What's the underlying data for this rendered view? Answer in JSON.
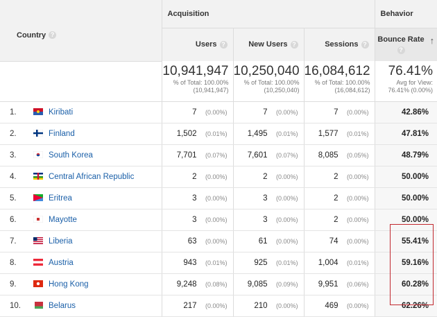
{
  "headers": {
    "country": "Country",
    "acquisition": "Acquisition",
    "behavior": "Behavior",
    "users": "Users",
    "new_users": "New Users",
    "sessions": "Sessions",
    "bounce_rate": "Bounce Rate",
    "help_glyph": "?",
    "sort_glyph": "↑"
  },
  "totals": {
    "users": {
      "value": "10,941,947",
      "line1": "% of Total: 100.00%",
      "line2": "(10,941,947)"
    },
    "new_users": {
      "value": "10,250,040",
      "line1": "% of Total: 100.00%",
      "line2": "(10,250,040)"
    },
    "sessions": {
      "value": "16,084,612",
      "line1": "% of Total: 100.00%",
      "line2": "(16,084,612)"
    },
    "bounce_rate": {
      "value": "76.41%",
      "line1": "Avg for View:",
      "line2": "76.41% (0.00%)"
    }
  },
  "rows": [
    {
      "rank": "1.",
      "country": "Kiribati",
      "users": "7",
      "users_pct": "(0.00%)",
      "new_users": "7",
      "new_users_pct": "(0.00%)",
      "sessions": "7",
      "sessions_pct": "(0.00%)",
      "bounce": "42.86%"
    },
    {
      "rank": "2.",
      "country": "Finland",
      "users": "1,502",
      "users_pct": "(0.01%)",
      "new_users": "1,495",
      "new_users_pct": "(0.01%)",
      "sessions": "1,577",
      "sessions_pct": "(0.01%)",
      "bounce": "47.81%"
    },
    {
      "rank": "3.",
      "country": "South Korea",
      "users": "7,701",
      "users_pct": "(0.07%)",
      "new_users": "7,601",
      "new_users_pct": "(0.07%)",
      "sessions": "8,085",
      "sessions_pct": "(0.05%)",
      "bounce": "48.79%"
    },
    {
      "rank": "4.",
      "country": "Central African Republic",
      "users": "2",
      "users_pct": "(0.00%)",
      "new_users": "2",
      "new_users_pct": "(0.00%)",
      "sessions": "2",
      "sessions_pct": "(0.00%)",
      "bounce": "50.00%"
    },
    {
      "rank": "5.",
      "country": "Eritrea",
      "users": "3",
      "users_pct": "(0.00%)",
      "new_users": "3",
      "new_users_pct": "(0.00%)",
      "sessions": "2",
      "sessions_pct": "(0.00%)",
      "bounce": "50.00%"
    },
    {
      "rank": "6.",
      "country": "Mayotte",
      "users": "3",
      "users_pct": "(0.00%)",
      "new_users": "3",
      "new_users_pct": "(0.00%)",
      "sessions": "2",
      "sessions_pct": "(0.00%)",
      "bounce": "50.00%"
    },
    {
      "rank": "7.",
      "country": "Liberia",
      "users": "63",
      "users_pct": "(0.00%)",
      "new_users": "61",
      "new_users_pct": "(0.00%)",
      "sessions": "74",
      "sessions_pct": "(0.00%)",
      "bounce": "55.41%"
    },
    {
      "rank": "8.",
      "country": "Austria",
      "users": "943",
      "users_pct": "(0.01%)",
      "new_users": "925",
      "new_users_pct": "(0.01%)",
      "sessions": "1,004",
      "sessions_pct": "(0.01%)",
      "bounce": "59.16%"
    },
    {
      "rank": "9.",
      "country": "Hong Kong",
      "users": "9,248",
      "users_pct": "(0.08%)",
      "new_users": "9,085",
      "new_users_pct": "(0.09%)",
      "sessions": "9,951",
      "sessions_pct": "(0.06%)",
      "bounce": "60.28%"
    },
    {
      "rank": "10.",
      "country": "Belarus",
      "users": "217",
      "users_pct": "(0.00%)",
      "new_users": "210",
      "new_users_pct": "(0.00%)",
      "sessions": "469",
      "sessions_pct": "(0.00%)",
      "bounce": "62.26%"
    }
  ],
  "flag_icons": [
    "kiribati-flag-icon",
    "finland-flag-icon",
    "south-korea-flag-icon",
    "central-african-republic-flag-icon",
    "eritrea-flag-icon",
    "mayotte-flag-icon",
    "liberia-flag-icon",
    "austria-flag-icon",
    "hong-kong-flag-icon",
    "belarus-flag-icon"
  ],
  "colors": {
    "link": "#1a5fa8",
    "highlight_border": "#c1272d",
    "header_bg": "#f2f2f2"
  }
}
